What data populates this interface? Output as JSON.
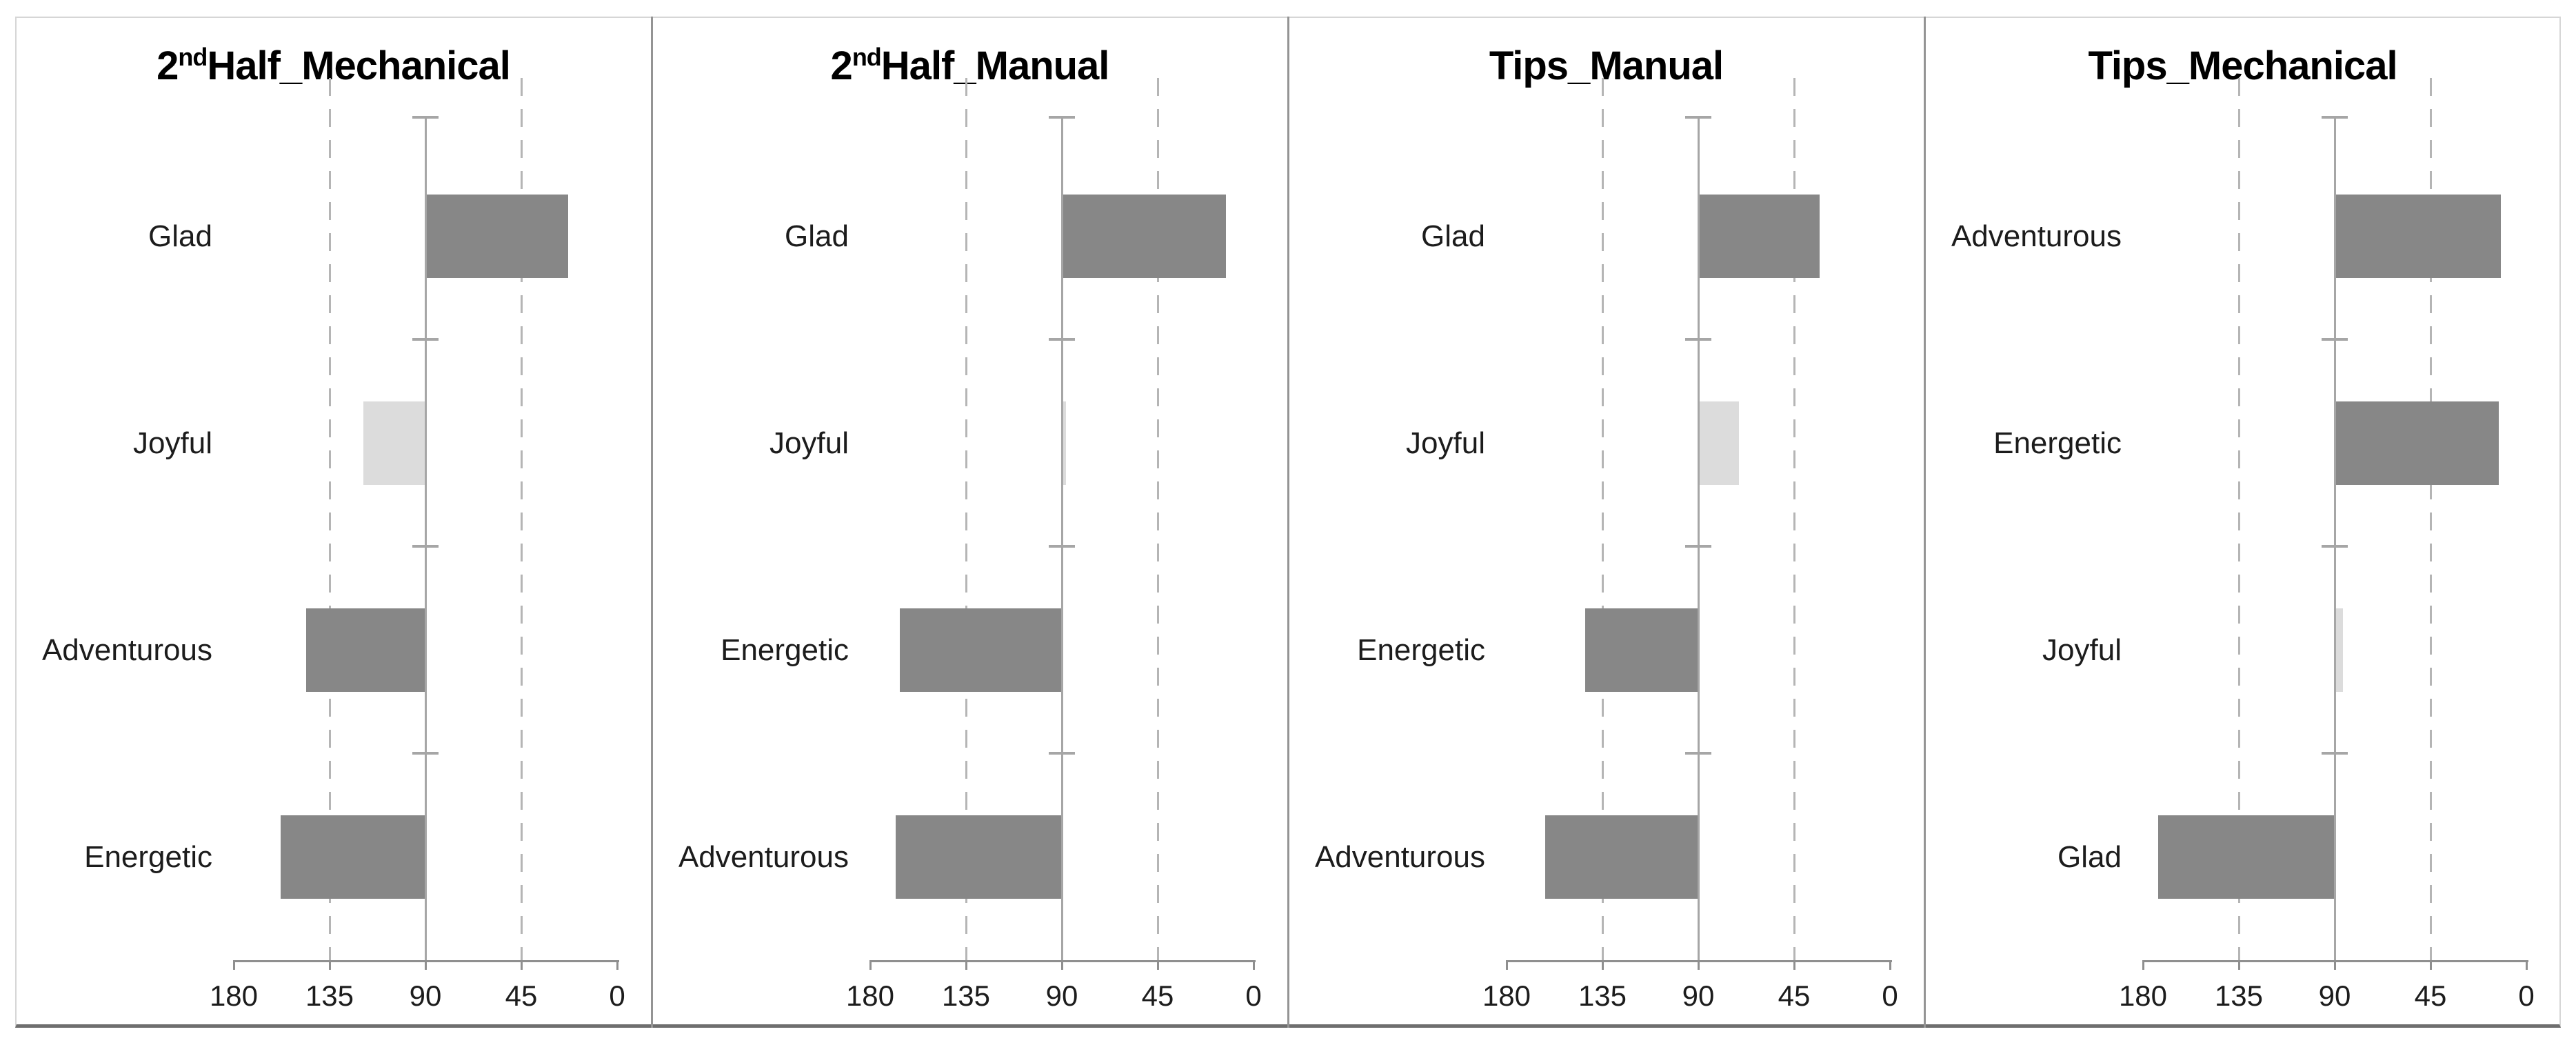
{
  "figure": {
    "axis_min": 0,
    "axis_max": 180,
    "reference_value": 90,
    "dashed_gridlines": [
      135,
      45
    ],
    "colors": {
      "bar_dark": "#878787",
      "bar_light": "#dcdcdc",
      "gridline": "#b5b5b5",
      "reference_line": "#a6a6a6",
      "axis_line": "#8f8f8f",
      "panel_separator": "#949494",
      "outer_border": "#d6d6d6",
      "bottom_border": "#6e6e6e",
      "text": "#1c1c1c"
    }
  },
  "chart_data": [
    {
      "type": "bar",
      "orientation": "horizontal",
      "title": "2ndHalf_Mechanical",
      "title_parts": {
        "prefix": "2",
        "sup": "nd",
        "main": "Half_Mechanical"
      },
      "categories": [
        "Glad",
        "Joyful",
        "Adventurous",
        "Energetic"
      ],
      "values": [
        23,
        119,
        146,
        158
      ],
      "emphasis": [
        "dark",
        "light",
        "dark",
        "dark"
      ],
      "xlim": [
        180,
        0
      ],
      "x_ticks": [
        180,
        135,
        90,
        45,
        0
      ],
      "reference_line": 90,
      "grid": "dashed at 135 and 45",
      "legend": "none"
    },
    {
      "type": "bar",
      "orientation": "horizontal",
      "title": "2ndHalf_Manual",
      "title_parts": {
        "prefix": "2",
        "sup": "nd",
        "main": "Half_Manual"
      },
      "categories": [
        "Glad",
        "Joyful",
        "Energetic",
        "Adventurous"
      ],
      "values": [
        13,
        88,
        166,
        168
      ],
      "emphasis": [
        "dark",
        "light",
        "dark",
        "dark"
      ],
      "xlim": [
        180,
        0
      ],
      "x_ticks": [
        180,
        135,
        90,
        45,
        0
      ],
      "reference_line": 90,
      "grid": "dashed at 135 and 45",
      "legend": "none"
    },
    {
      "type": "bar",
      "orientation": "horizontal",
      "title": "Tips_Manual",
      "title_parts": {
        "prefix": "",
        "sup": "",
        "main": "Tips_Manual"
      },
      "categories": [
        "Glad",
        "Joyful",
        "Energetic",
        "Adventurous"
      ],
      "values": [
        33,
        71,
        143,
        162
      ],
      "emphasis": [
        "dark",
        "light",
        "dark",
        "dark"
      ],
      "xlim": [
        180,
        0
      ],
      "x_ticks": [
        180,
        135,
        90,
        45,
        0
      ],
      "reference_line": 90,
      "grid": "dashed at 135 and 45",
      "legend": "none"
    },
    {
      "type": "bar",
      "orientation": "horizontal",
      "title": "Tips_Mechanical",
      "title_parts": {
        "prefix": "",
        "sup": "",
        "main": "Tips_Mechanical"
      },
      "categories": [
        "Adventurous",
        "Energetic",
        "Joyful",
        "Glad"
      ],
      "values": [
        12,
        13,
        86,
        173
      ],
      "emphasis": [
        "dark",
        "dark",
        "light",
        "dark"
      ],
      "xlim": [
        180,
        0
      ],
      "x_ticks": [
        180,
        135,
        90,
        45,
        0
      ],
      "reference_line": 90,
      "grid": "dashed at 135 and 45",
      "legend": "none"
    }
  ]
}
